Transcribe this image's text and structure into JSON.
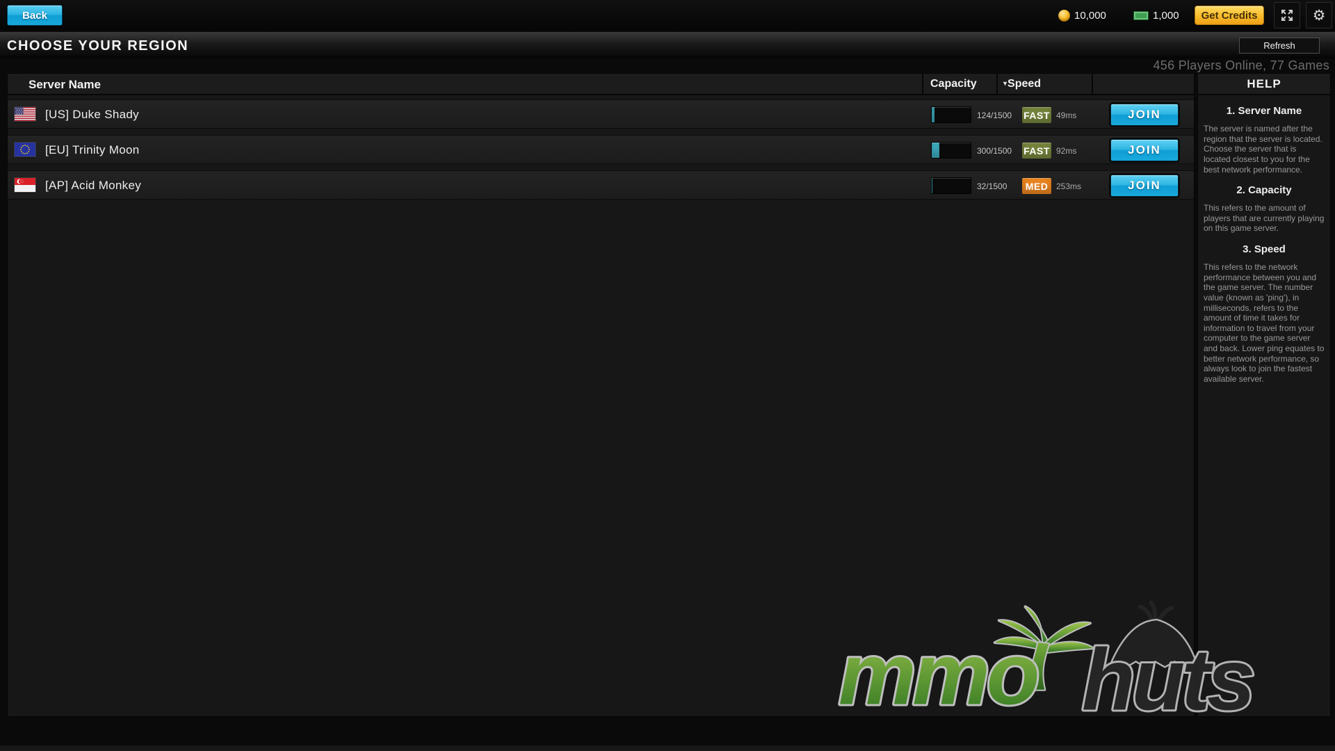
{
  "top_bar": {
    "back_label": "Back",
    "coin_amount": "10,000",
    "cash_amount": "1,000",
    "get_credits_label": "Get Credits",
    "settings_glyph": "⚙"
  },
  "header": {
    "title": "CHOOSE YOUR REGION",
    "refresh_label": "Refresh",
    "status": "456 Players Online, 77 Games"
  },
  "table": {
    "columns": {
      "server": "Server Name",
      "capacity": "Capacity",
      "speed": "Speed",
      "sort_indicator": "▾"
    },
    "rows": [
      {
        "flag": "us-flag",
        "name": "[US] Duke Shady",
        "capacity_label": "124/1500",
        "capacity_current": 124,
        "capacity_max": 1500,
        "capacity_pct": 8,
        "speed_rating": "FAST",
        "badge_color": "#73823b",
        "ping": "49ms",
        "join_label": "JOIN"
      },
      {
        "flag": "eu-flag",
        "name": "[EU] Trinity Moon",
        "capacity_label": "300/1500",
        "capacity_current": 300,
        "capacity_max": 1500,
        "capacity_pct": 20,
        "speed_rating": "FAST",
        "badge_color": "#73823b",
        "ping": "92ms",
        "join_label": "JOIN"
      },
      {
        "flag": "sg-flag",
        "name": "[AP] Acid Monkey",
        "capacity_label": "32/1500",
        "capacity_current": 32,
        "capacity_max": 1500,
        "capacity_pct": 2,
        "speed_rating": "MED",
        "badge_color": "#e8831f",
        "ping": "253ms",
        "join_label": "JOIN"
      }
    ]
  },
  "help": {
    "title": "HELP",
    "sections": [
      {
        "heading": "1. Server Name",
        "body": "The server is named after the region that the server is located. Choose the server that is located closest to you for the best network performance."
      },
      {
        "heading": "2. Capacity",
        "body": "This refers to the amount of players that are currently playing on this game server."
      },
      {
        "heading": "3. Speed",
        "body": "This refers to the network performance between you and the game server. The number value (known as 'ping'), in milliseconds, refers to the amount of time it takes for information to travel from your computer to the game server and back. Lower ping equates to better network performance, so always look to join the fastest available server."
      }
    ]
  },
  "logo": {
    "mmo": "mmo",
    "huts": "huts"
  },
  "colors": {
    "accent_cyan": "#29b6e8",
    "badge_fast": "#73823b",
    "badge_med": "#e8831f",
    "capacity_fill": "#3fb2c6",
    "credits_yellow": "#fbbe2e"
  }
}
